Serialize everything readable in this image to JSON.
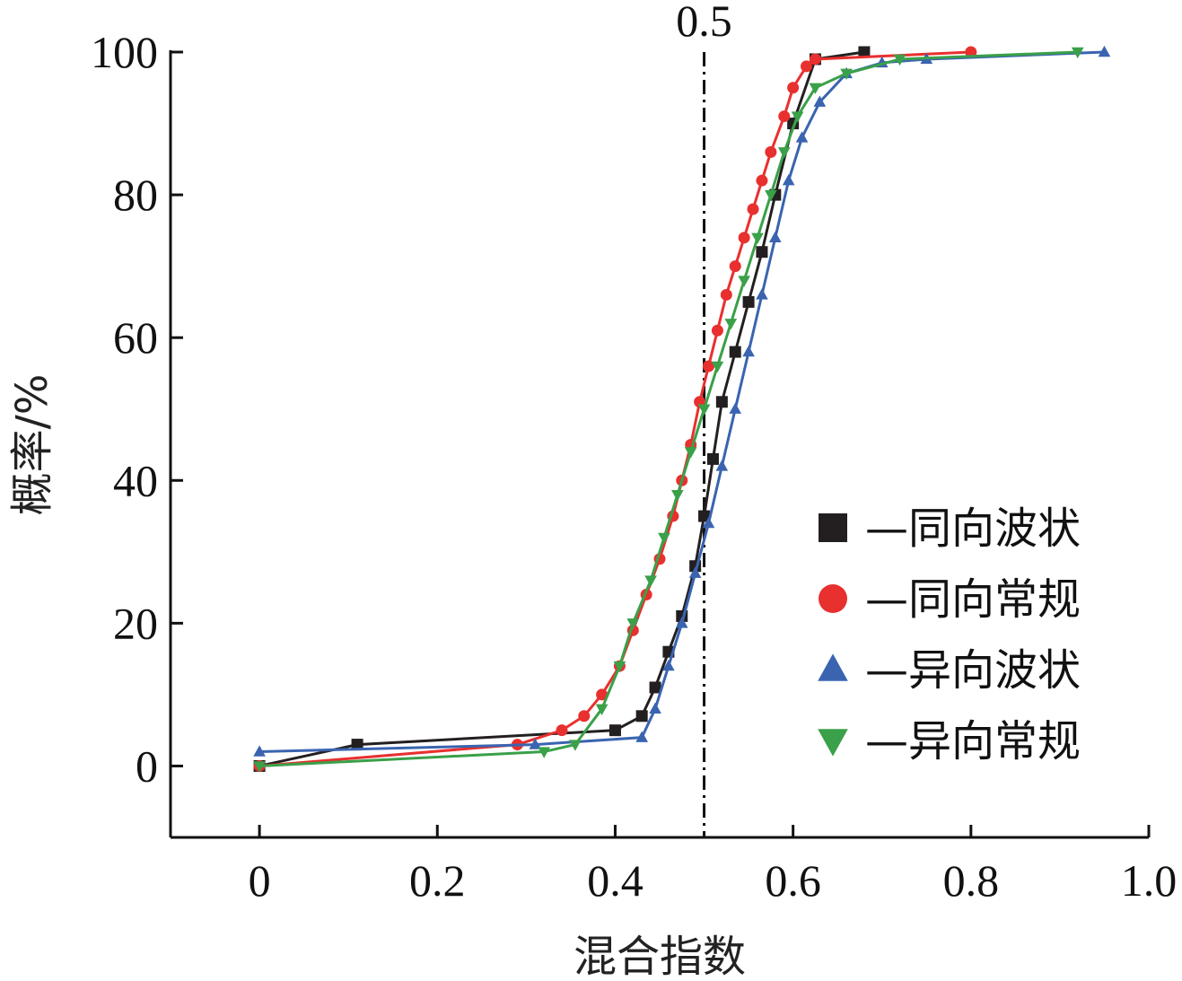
{
  "chart_data": {
    "type": "line",
    "xlabel": "混合指数",
    "ylabel": "概率/%",
    "xlim": [
      -0.1,
      1.0
    ],
    "ylim": [
      -10,
      100
    ],
    "x_ticks": [
      0,
      0.2,
      0.4,
      0.6,
      0.8,
      1.0
    ],
    "x_tick_labels": [
      "0",
      "0.2",
      "0.4",
      "0.6",
      "0.8",
      "1.0"
    ],
    "y_ticks": [
      0,
      20,
      40,
      60,
      80,
      100
    ],
    "y_tick_labels": [
      "0",
      "20",
      "40",
      "60",
      "80",
      "100"
    ],
    "reference_line": {
      "x": 0.5,
      "label": "0.5",
      "style": "dash-dot"
    },
    "legend_position": "bottom-right",
    "series": [
      {
        "name": "—同向波状",
        "marker": "square",
        "color": "#231f20",
        "x": [
          0,
          0.11,
          0.4,
          0.43,
          0.445,
          0.46,
          0.475,
          0.49,
          0.5,
          0.51,
          0.52,
          0.535,
          0.55,
          0.565,
          0.58,
          0.6,
          0.625,
          0.68
        ],
        "y": [
          0,
          3,
          5,
          7,
          11,
          16,
          21,
          28,
          35,
          43,
          51,
          58,
          65,
          72,
          80,
          90,
          99,
          100
        ]
      },
      {
        "name": "—同向常规",
        "marker": "circle",
        "color": "#e8302f",
        "x": [
          0,
          0.29,
          0.34,
          0.365,
          0.385,
          0.405,
          0.42,
          0.435,
          0.45,
          0.465,
          0.475,
          0.485,
          0.495,
          0.505,
          0.515,
          0.525,
          0.535,
          0.545,
          0.555,
          0.565,
          0.575,
          0.59,
          0.6,
          0.615,
          0.625,
          0.8
        ],
        "y": [
          0,
          3,
          5,
          7,
          10,
          14,
          19,
          24,
          29,
          35,
          40,
          45,
          51,
          56,
          61,
          66,
          70,
          74,
          78,
          82,
          86,
          91,
          95,
          98,
          99,
          100
        ]
      },
      {
        "name": "—异向波状",
        "marker": "triangle-up",
        "color": "#3a64b0",
        "x": [
          0,
          0.31,
          0.43,
          0.445,
          0.46,
          0.475,
          0.49,
          0.505,
          0.52,
          0.535,
          0.55,
          0.565,
          0.58,
          0.595,
          0.61,
          0.63,
          0.66,
          0.7,
          0.75,
          0.95
        ],
        "y": [
          2,
          3,
          4,
          8,
          14,
          20,
          27,
          34,
          42,
          50,
          58,
          66,
          74,
          82,
          88,
          93,
          97,
          98.5,
          99,
          100
        ]
      },
      {
        "name": "—异向常规",
        "marker": "triangle-down",
        "color": "#3aa049",
        "x": [
          0,
          0.32,
          0.355,
          0.385,
          0.405,
          0.42,
          0.44,
          0.455,
          0.47,
          0.485,
          0.5,
          0.515,
          0.53,
          0.545,
          0.56,
          0.575,
          0.59,
          0.605,
          0.625,
          0.66,
          0.72,
          0.92
        ],
        "y": [
          0,
          2,
          3,
          8,
          14,
          20,
          26,
          32,
          38,
          44,
          50,
          56,
          62,
          68,
          74,
          80,
          86,
          91,
          95,
          97,
          99,
          100
        ]
      }
    ]
  }
}
